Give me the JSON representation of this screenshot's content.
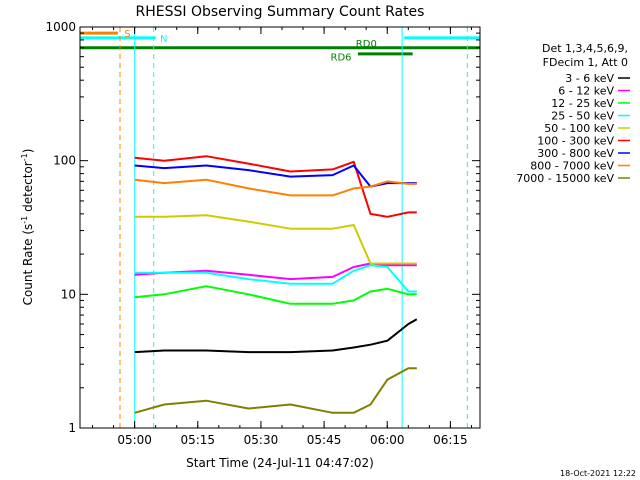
{
  "chart_data": {
    "type": "line",
    "title": "RHESSI Observing Summary Count Rates",
    "xlabel": "Start Time (24-Jul-11 04:47:02)",
    "ylabel_main": "Count Rate (s",
    "ylabel_sup1": "-1",
    "ylabel_mid": " detector",
    "ylabel_sup2": "-1",
    "ylabel_end": ")",
    "x_unit": "minutes since 04:47:02",
    "xlim": [
      0,
      95
    ],
    "ylim": [
      1,
      1000
    ],
    "y_scale": "log",
    "x_ticks": [
      {
        "v": 12.97,
        "label": "05:00"
      },
      {
        "v": 27.97,
        "label": "05:15"
      },
      {
        "v": 42.97,
        "label": "05:30"
      },
      {
        "v": 57.97,
        "label": "05:45"
      },
      {
        "v": 72.97,
        "label": "06:00"
      },
      {
        "v": 87.97,
        "label": "06:15"
      }
    ],
    "y_ticks": [
      {
        "v": 1,
        "label": "1"
      },
      {
        "v": 10,
        "label": "10"
      },
      {
        "v": 100,
        "label": "100"
      },
      {
        "v": 1000,
        "label": "1000"
      }
    ],
    "legend_header": [
      "Det 1,3,4,5,6,9,",
      "FDecim 1, Att 0"
    ],
    "legend_position": "right",
    "series": [
      {
        "name": "3 - 6 keV",
        "color": "#000000",
        "x": [
          13,
          20,
          30,
          40,
          50,
          60,
          65,
          69,
          73,
          78,
          80
        ],
        "values": [
          3.7,
          3.8,
          3.8,
          3.7,
          3.7,
          3.8,
          4.0,
          4.2,
          4.5,
          6.0,
          6.5
        ]
      },
      {
        "name": "6 - 12 keV",
        "color": "#ff00ff",
        "x": [
          13,
          20,
          30,
          40,
          50,
          60,
          65,
          69,
          73,
          78,
          80
        ],
        "values": [
          14.0,
          14.5,
          15.0,
          14.0,
          13.0,
          13.5,
          16.0,
          17.0,
          16.5,
          16.5,
          16.5
        ]
      },
      {
        "name": "12 - 25 keV",
        "color": "#00ff00",
        "x": [
          13,
          20,
          30,
          40,
          50,
          60,
          65,
          69,
          73,
          78,
          80
        ],
        "values": [
          9.5,
          10.0,
          11.5,
          10.0,
          8.5,
          8.5,
          9.0,
          10.5,
          11.0,
          10.0,
          10.0
        ]
      },
      {
        "name": "25 - 50 keV",
        "color": "#00ffff",
        "x": [
          13,
          20,
          30,
          40,
          50,
          60,
          65,
          69,
          73,
          78,
          80
        ],
        "values": [
          14.5,
          14.5,
          14.5,
          13.0,
          12.0,
          12.0,
          15.0,
          16.5,
          16.0,
          10.5,
          10.5
        ]
      },
      {
        "name": "50 - 100 keV",
        "color": "#cccc00",
        "x": [
          13,
          20,
          30,
          40,
          50,
          60,
          65,
          69,
          73,
          78,
          80
        ],
        "values": [
          38,
          38,
          39,
          35,
          31,
          31,
          33,
          17.0,
          17.0,
          17.0,
          17.0
        ]
      },
      {
        "name": "100 - 300 keV",
        "color": "#ff0000",
        "x": [
          13,
          20,
          30,
          40,
          50,
          60,
          65,
          69,
          73,
          78,
          80
        ],
        "values": [
          105,
          100,
          108,
          95,
          83,
          86,
          98,
          40,
          38,
          41,
          41
        ]
      },
      {
        "name": "300 - 800 keV",
        "color": "#0000ff",
        "x": [
          13,
          20,
          30,
          40,
          50,
          60,
          65,
          69,
          73,
          78,
          80
        ],
        "values": [
          92,
          88,
          92,
          85,
          76,
          78,
          92,
          64,
          68,
          68,
          68
        ]
      },
      {
        "name": "800 - 7000 keV",
        "color": "#ff8000",
        "x": [
          13,
          20,
          30,
          40,
          50,
          60,
          65,
          69,
          73,
          78,
          80
        ],
        "values": [
          72,
          68,
          72,
          62,
          55,
          55,
          62,
          64,
          70,
          67,
          67
        ]
      },
      {
        "name": "7000 - 15000 keV",
        "color": "#808000",
        "x": [
          13,
          20,
          30,
          40,
          50,
          60,
          65,
          69,
          73,
          78,
          80
        ],
        "values": [
          1.3,
          1.5,
          1.6,
          1.4,
          1.5,
          1.3,
          1.3,
          1.5,
          2.3,
          2.8,
          2.8
        ]
      }
    ],
    "flag_bars": [
      {
        "label": "S",
        "color": "#ff8000",
        "x": [
          0,
          9
        ],
        "y": 900
      },
      {
        "label": "N",
        "color": "#00ffff",
        "x": [
          0,
          18
        ],
        "y": 830
      },
      {
        "label": "N",
        "color": "#00ffff",
        "x": [
          77,
          95
        ],
        "y": 830
      },
      {
        "label": "RD0",
        "color": "#008000",
        "x": [
          0,
          95
        ],
        "y": 700
      },
      {
        "label": "RD6",
        "color": "#008000",
        "x": [
          66,
          79
        ],
        "y": 630
      }
    ],
    "flag_labels": {
      "S": "S",
      "N": "N",
      "RD0": "RD0",
      "RD6": "RD6"
    },
    "vlines": [
      {
        "x": 9.5,
        "color": "#ff8000",
        "style": "dashed"
      },
      {
        "x": 17.5,
        "color": "#00ffff",
        "style": "dashed"
      },
      {
        "x": 92.0,
        "color": "#00ffff",
        "style": "dashed"
      },
      {
        "x": 13.0,
        "color": "#00ffff",
        "style": "solid"
      },
      {
        "x": 76.5,
        "color": "#00ffff",
        "style": "solid"
      }
    ],
    "grid": false
  },
  "footer": {
    "timestamp": "18-Oct-2021 12:22"
  }
}
